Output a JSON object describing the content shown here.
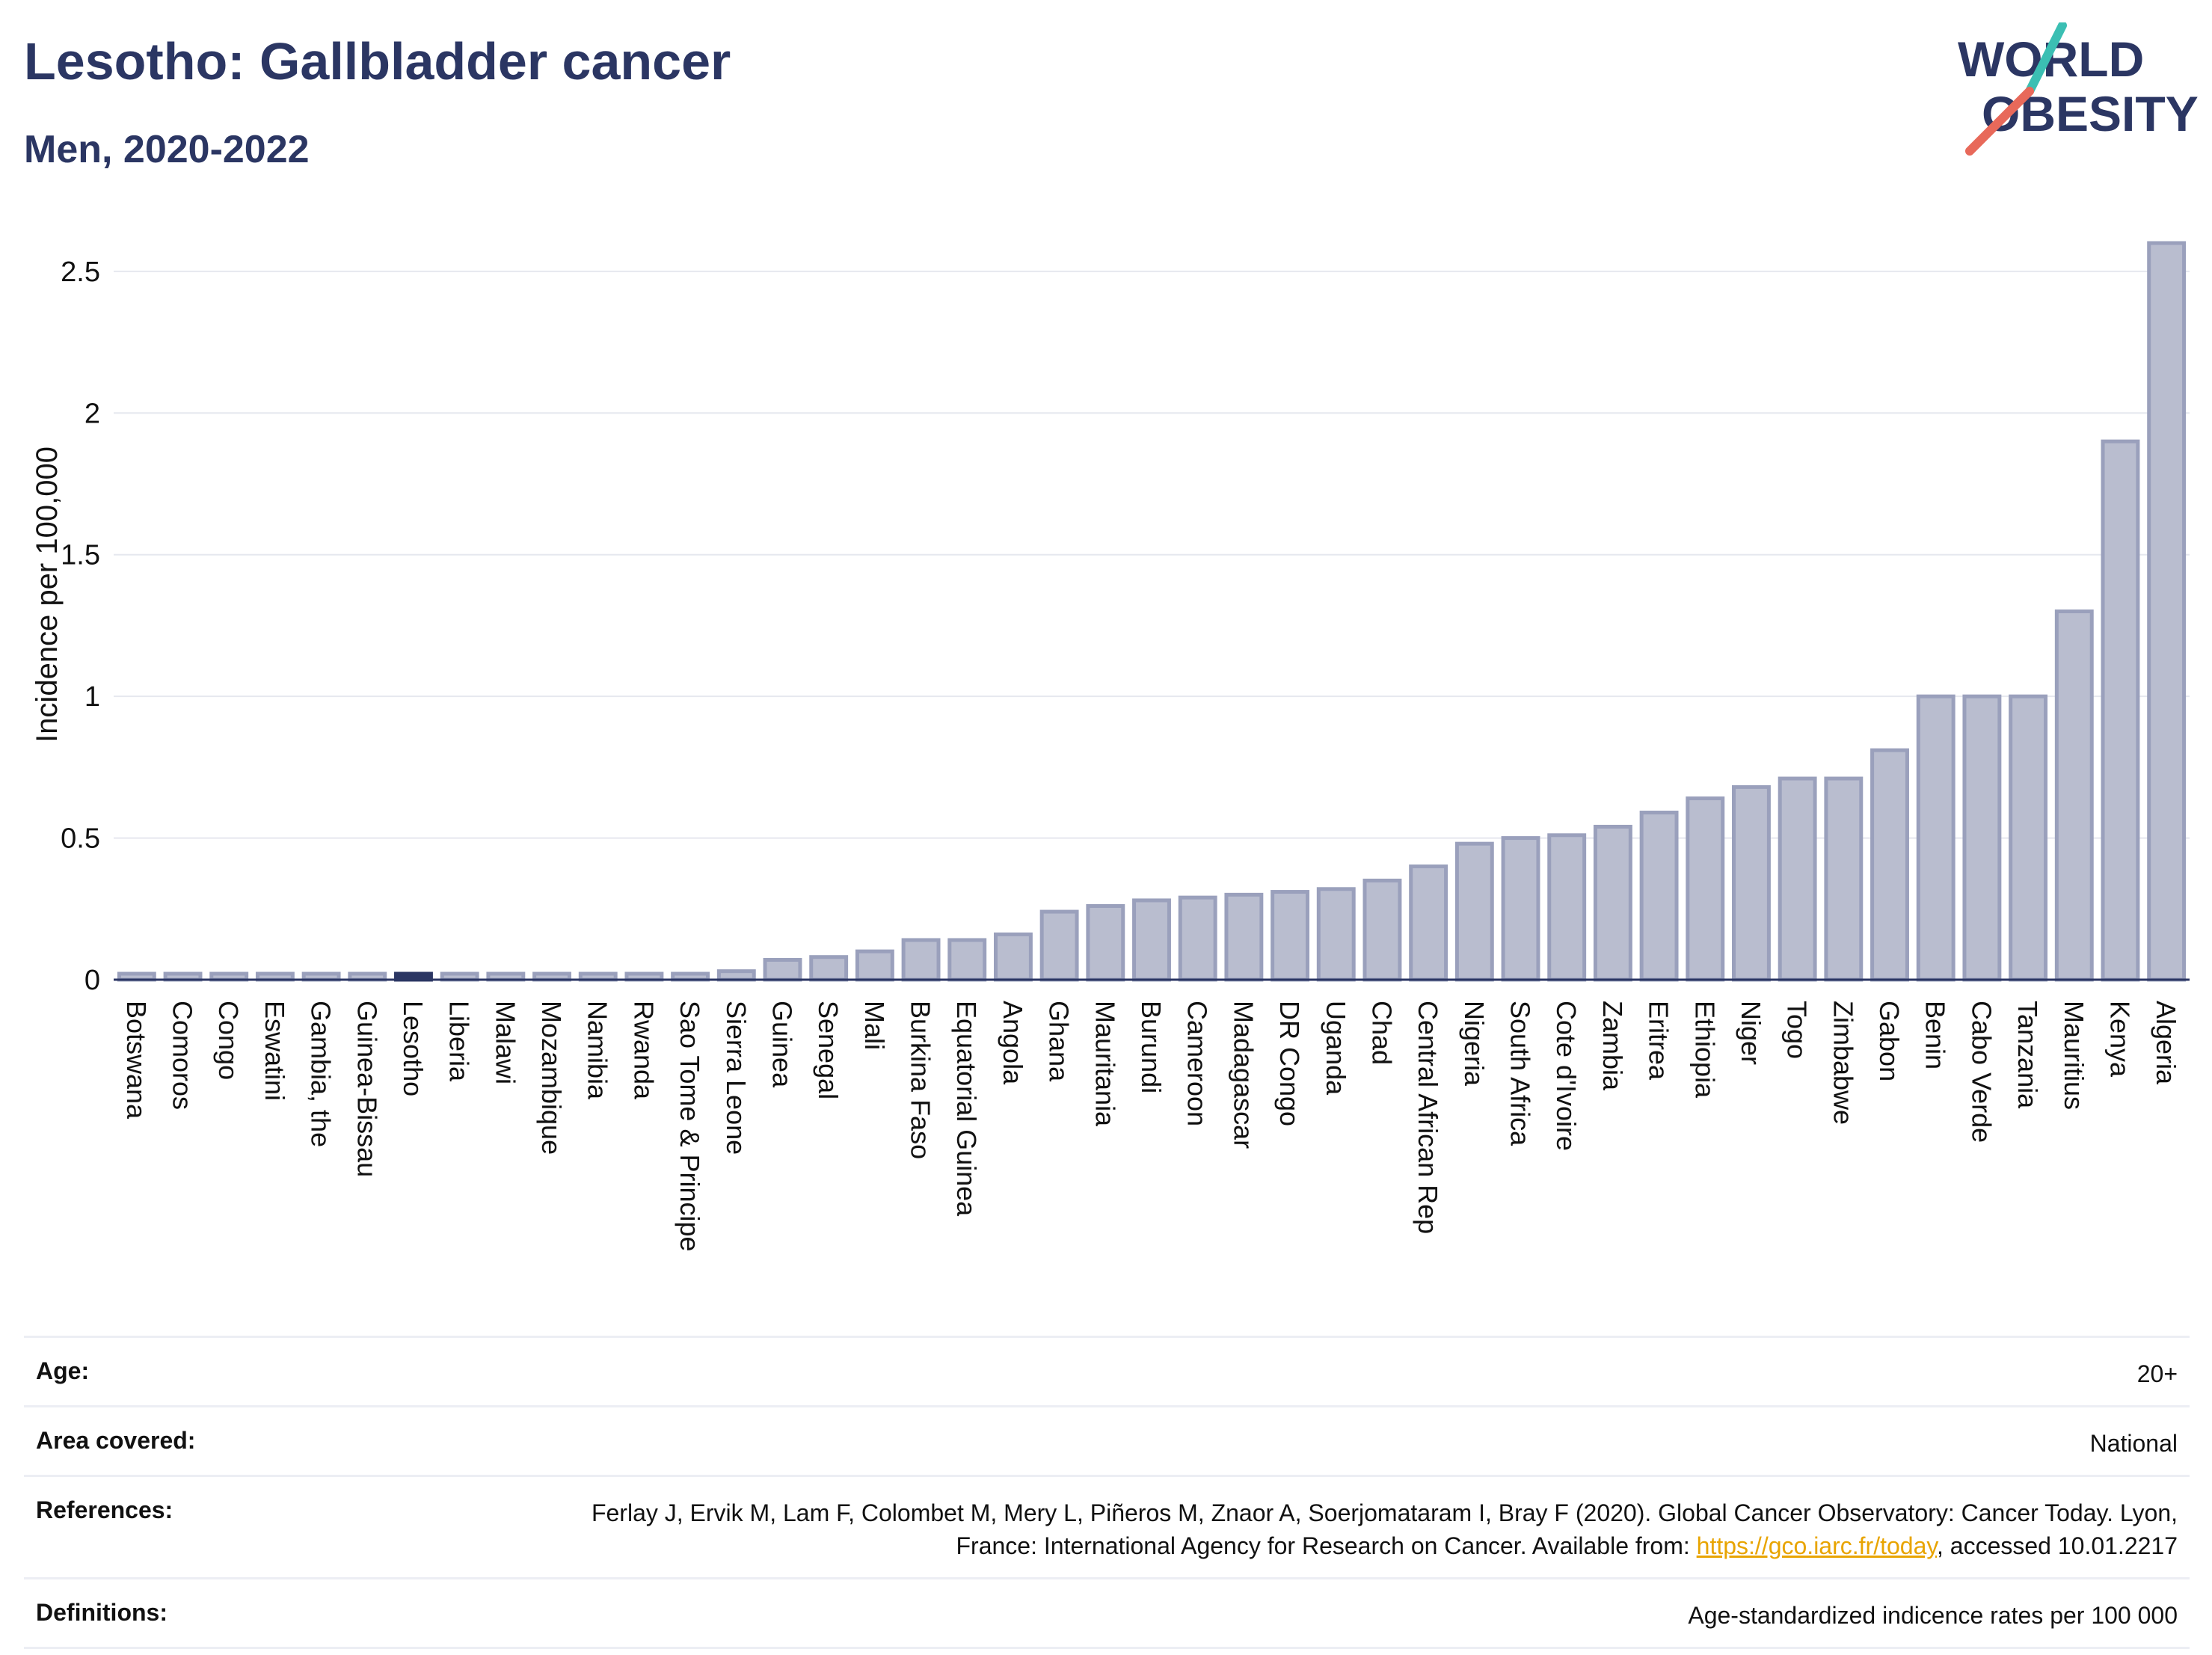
{
  "header": {
    "title": "Lesotho: Gallbladder cancer",
    "subtitle": "Men, 2020-2022"
  },
  "logo": {
    "line1": "WORLD",
    "line2": "OBESITY"
  },
  "chart_data": {
    "type": "bar",
    "ylabel": "Incidence per 100,000",
    "xlabel": "",
    "ylim": [
      0,
      2.7
    ],
    "yticks": [
      0,
      0.5,
      1,
      1.5,
      2,
      2.5
    ],
    "ytick_labels": [
      "0",
      "0.5",
      "1",
      "1.5",
      "2",
      "2.5"
    ],
    "highlight": "Lesotho",
    "colors": {
      "bar": "#b9bdcf",
      "bar_edge": "#9aa0bc",
      "highlight": "#2b3663",
      "grid": "#e6e8ef"
    },
    "categories": [
      "Botswana",
      "Comoros",
      "Congo",
      "Eswatini",
      "Gambia, the",
      "Guinea-Bissau",
      "Lesotho",
      "Liberia",
      "Malawi",
      "Mozambique",
      "Namibia",
      "Rwanda",
      "Sao Tome & Principe",
      "Sierra Leone",
      "Guinea",
      "Senegal",
      "Mali",
      "Burkina Faso",
      "Equatorial Guinea",
      "Angola",
      "Ghana",
      "Mauritania",
      "Burundi",
      "Cameroon",
      "Madagascar",
      "DR Congo",
      "Uganda",
      "Chad",
      "Central African Rep",
      "Nigeria",
      "South Africa",
      "Cote d'Ivoire",
      "Zambia",
      "Eritrea",
      "Ethiopia",
      "Niger",
      "Togo",
      "Zimbabwe",
      "Gabon",
      "Benin",
      "Cabo Verde",
      "Tanzania",
      "Mauritius",
      "Kenya",
      "Algeria"
    ],
    "values": [
      0,
      0,
      0,
      0,
      0,
      0,
      0,
      0,
      0,
      0,
      0,
      0,
      0,
      0.03,
      0.07,
      0.08,
      0.1,
      0.14,
      0.14,
      0.16,
      0.24,
      0.26,
      0.28,
      0.29,
      0.3,
      0.31,
      0.32,
      0.35,
      0.4,
      0.48,
      0.5,
      0.51,
      0.54,
      0.59,
      0.64,
      0.68,
      0.71,
      0.71,
      0.81,
      1.0,
      1.0,
      1.0,
      1.3,
      1.9,
      2.6
    ]
  },
  "meta": {
    "age_label": "Age:",
    "age_value": "20+",
    "area_label": "Area covered:",
    "area_value": "National",
    "references_label": "References:",
    "references_text1": "Ferlay J, Ervik M, Lam F, Colombet M, Mery L, Piñeros M, Znaor A, Soerjomataram I, Bray F (2020). Global Cancer Observatory: Cancer Today. Lyon, France: International Agency for Research on Cancer. Available from: ",
    "references_link": "https://gco.iarc.fr/today",
    "references_text2": ", accessed 10.01.2217",
    "definitions_label": "Definitions:",
    "definitions_value": "Age-standardized indicence rates per 100 000"
  }
}
